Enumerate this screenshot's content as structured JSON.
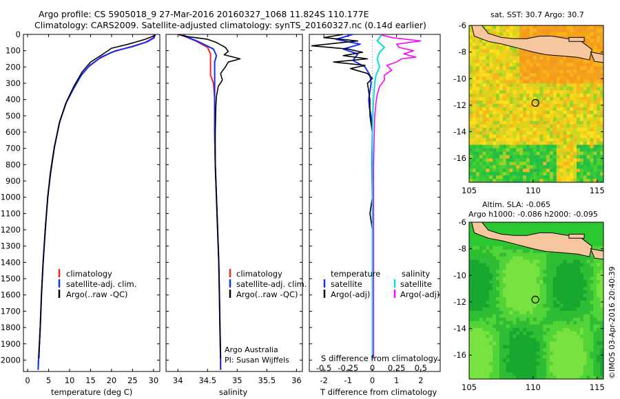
{
  "header": {
    "line1": "Argo profile: CS 5905018_9 27-Mar-2016 20160327_1068 11.824S 110.177E",
    "line2": "Climatology: CARS2009. Satellite-adjusted climatology: synTS_20160327.nc (0.14d earlier)"
  },
  "colors": {
    "climatology": "#ff2020",
    "satellite": "#1030ff",
    "argo": "#000000",
    "satellite_salinity": "#00e0e0",
    "argo_salinity": "#ff00ff",
    "land": "#f6c79e"
  },
  "chart_data": [
    {
      "type": "line",
      "id": "temperature",
      "xlabel": "temperature (deg C)",
      "xlim": [
        -1,
        31.5
      ],
      "xticks": [
        0,
        5,
        10,
        15,
        20,
        25,
        30
      ],
      "ylim": [
        2070,
        0
      ],
      "yticks": [
        0,
        100,
        200,
        300,
        400,
        500,
        600,
        700,
        800,
        900,
        1000,
        1100,
        1200,
        1300,
        1400,
        1500,
        1600,
        1700,
        1800,
        1900,
        2000
      ],
      "legend": [
        "climatology",
        "satellite-adj. clim.",
        "Argo(..raw -QC)"
      ],
      "series": [
        {
          "name": "climatology",
          "color": "#ff2020",
          "points": [
            [
              30.2,
              0
            ],
            [
              30,
              20
            ],
            [
              28,
              50
            ],
            [
              24,
              80
            ],
            [
              20,
              110
            ],
            [
              17,
              150
            ],
            [
              14.5,
              200
            ],
            [
              12.5,
              260
            ],
            [
              10.5,
              350
            ],
            [
              9,
              430
            ],
            [
              7.5,
              550
            ],
            [
              6.3,
              700
            ],
            [
              5.4,
              850
            ],
            [
              4.8,
              1000
            ],
            [
              4.2,
              1200
            ],
            [
              3.7,
              1400
            ],
            [
              3.3,
              1600
            ],
            [
              3,
              1800
            ],
            [
              2.6,
              2000
            ],
            [
              2.5,
              2060
            ]
          ]
        },
        {
          "name": "satellite-adj. clim.",
          "color": "#1030ff",
          "points": [
            [
              30.2,
              0
            ],
            [
              30.2,
              20
            ],
            [
              28.5,
              45
            ],
            [
              25,
              75
            ],
            [
              21,
              100
            ],
            [
              17.5,
              140
            ],
            [
              14.8,
              190
            ],
            [
              12.8,
              250
            ],
            [
              10.8,
              340
            ],
            [
              9.2,
              420
            ],
            [
              7.6,
              540
            ],
            [
              6.4,
              690
            ],
            [
              5.5,
              840
            ],
            [
              4.8,
              1000
            ],
            [
              4.2,
              1200
            ],
            [
              3.7,
              1400
            ],
            [
              3.3,
              1600
            ],
            [
              3,
              1800
            ],
            [
              2.6,
              2000
            ],
            [
              2.5,
              2060
            ]
          ]
        },
        {
          "name": "Argo(..raw -QC)",
          "color": "#000000",
          "points": [
            [
              30.5,
              5
            ],
            [
              28,
              30
            ],
            [
              24,
              60
            ],
            [
              20,
              85
            ],
            [
              18,
              120
            ],
            [
              15,
              170
            ],
            [
              13,
              230
            ],
            [
              11,
              320
            ],
            [
              9.3,
              410
            ],
            [
              7.7,
              530
            ],
            [
              6.4,
              690
            ],
            [
              5.5,
              850
            ],
            [
              4.8,
              1000
            ],
            [
              4.2,
              1200
            ],
            [
              3.7,
              1400
            ],
            [
              3.3,
              1600
            ],
            [
              3,
              1800
            ],
            [
              2.7,
              1990
            ]
          ]
        }
      ]
    },
    {
      "type": "line",
      "id": "salinity",
      "xlabel": "salinity",
      "xlim": [
        33.8,
        36.1
      ],
      "xticks": [
        34,
        34.5,
        35,
        35.5,
        36
      ],
      "ylim": [
        2070,
        0
      ],
      "legend": [
        "climatology",
        "satellite-adj. clim.",
        "Argo(..raw -QC)"
      ],
      "annotations": [
        "Argo Australia",
        "PI: Susan Wijffels"
      ],
      "series": [
        {
          "name": "climatology",
          "color": "#ff2020",
          "points": [
            [
              34.05,
              0
            ],
            [
              34.1,
              10
            ],
            [
              34.3,
              40
            ],
            [
              34.5,
              80
            ],
            [
              34.55,
              120
            ],
            [
              34.55,
              180
            ],
            [
              34.55,
              250
            ],
            [
              34.6,
              300
            ],
            [
              34.62,
              400
            ],
            [
              34.62,
              600
            ],
            [
              34.63,
              800
            ],
            [
              34.65,
              1000
            ],
            [
              34.67,
              1200
            ],
            [
              34.69,
              1400
            ],
            [
              34.7,
              1600
            ],
            [
              34.71,
              1800
            ],
            [
              34.72,
              2000
            ],
            [
              34.72,
              2060
            ]
          ]
        },
        {
          "name": "satellite-adj. clim.",
          "color": "#1030ff",
          "points": [
            [
              34.08,
              0
            ],
            [
              34.15,
              15
            ],
            [
              34.35,
              45
            ],
            [
              34.6,
              90
            ],
            [
              34.65,
              130
            ],
            [
              34.62,
              170
            ],
            [
              34.62,
              250
            ],
            [
              34.62,
              300
            ],
            [
              34.62,
              400
            ],
            [
              34.62,
              600
            ],
            [
              34.63,
              800
            ],
            [
              34.65,
              1000
            ],
            [
              34.67,
              1200
            ],
            [
              34.69,
              1400
            ],
            [
              34.7,
              1600
            ],
            [
              34.71,
              1800
            ],
            [
              34.72,
              2000
            ],
            [
              34.72,
              2060
            ]
          ]
        },
        {
          "name": "Argo(..raw -QC)",
          "color": "#000000",
          "points": [
            [
              34.0,
              0
            ],
            [
              34.1,
              10
            ],
            [
              34.5,
              30
            ],
            [
              34.65,
              50
            ],
            [
              34.8,
              80
            ],
            [
              34.85,
              105
            ],
            [
              34.78,
              125
            ],
            [
              35.05,
              150
            ],
            [
              34.85,
              170
            ],
            [
              34.8,
              200
            ],
            [
              34.72,
              240
            ],
            [
              34.75,
              280
            ],
            [
              34.68,
              320
            ],
            [
              34.65,
              380
            ],
            [
              34.64,
              450
            ],
            [
              34.63,
              600
            ],
            [
              34.63,
              800
            ],
            [
              34.65,
              1000
            ],
            [
              34.67,
              1200
            ],
            [
              34.69,
              1400
            ],
            [
              34.7,
              1600
            ],
            [
              34.71,
              1800
            ],
            [
              34.72,
              1990
            ]
          ]
        }
      ]
    },
    {
      "type": "line",
      "id": "difference",
      "xlabel": "T difference from climatology",
      "xlabel_top": "S difference from climatology",
      "xlim": [
        -2.6,
        2.8
      ],
      "xticks": [
        -2,
        -1,
        0,
        1,
        2
      ],
      "s_ticks": [
        "-0.5",
        "-0.25",
        "0",
        "0.25",
        "0.5"
      ],
      "ylim": [
        2070,
        0
      ],
      "legend_left_title": "temperature",
      "legend_right_title": "salinity",
      "legend_left": [
        "satellite",
        "Argo(-adj)"
      ],
      "legend_right": [
        "satellite",
        "Argo(-adj)"
      ],
      "series": [
        {
          "name": "temperature satellite",
          "color": "#1030ff",
          "points": [
            [
              -0.8,
              0
            ],
            [
              -1.5,
              30
            ],
            [
              -0.5,
              60
            ],
            [
              -1.2,
              90
            ],
            [
              -0.6,
              120
            ],
            [
              -0.8,
              160
            ],
            [
              -0.3,
              200
            ],
            [
              -0.1,
              250
            ],
            [
              -0.05,
              300
            ],
            [
              -0.1,
              350
            ],
            [
              -0.15,
              400
            ],
            [
              -0.12,
              450
            ],
            [
              -0.05,
              500
            ],
            [
              0,
              600
            ],
            [
              -0.02,
              800
            ],
            [
              0,
              1000
            ],
            [
              0,
              1200
            ],
            [
              0,
              1400
            ],
            [
              0,
              1600
            ],
            [
              0,
              1800
            ],
            [
              0,
              2000
            ]
          ]
        },
        {
          "name": "temperature Argo(-adj)",
          "color": "#000000",
          "points": [
            [
              -1.2,
              0
            ],
            [
              -2.0,
              20
            ],
            [
              -0.6,
              40
            ],
            [
              -2.5,
              70
            ],
            [
              -1.0,
              90
            ],
            [
              -0.4,
              110
            ],
            [
              -1.2,
              130
            ],
            [
              -0.2,
              150
            ],
            [
              -1.6,
              170
            ],
            [
              -0.3,
              190
            ],
            [
              -0.9,
              210
            ],
            [
              -0.2,
              240
            ],
            [
              0,
              270
            ],
            [
              -0.2,
              300
            ],
            [
              -0.15,
              350
            ],
            [
              -0.1,
              400
            ],
            [
              -0.1,
              500
            ],
            [
              0,
              600
            ],
            [
              0,
              800
            ],
            [
              0,
              1000
            ],
            [
              -0.1,
              1100
            ],
            [
              0,
              1200
            ],
            [
              0,
              1400
            ],
            [
              0,
              1600
            ],
            [
              0,
              1800
            ],
            [
              0,
              1990
            ]
          ]
        },
        {
          "name": "salinity satellite",
          "color": "#00e0e0",
          "points": [
            [
              0.4,
              0
            ],
            [
              0.2,
              40
            ],
            [
              0.5,
              80
            ],
            [
              0.3,
              110
            ],
            [
              0.2,
              150
            ],
            [
              0.3,
              200
            ],
            [
              0.15,
              250
            ],
            [
              0.1,
              300
            ],
            [
              0.05,
              400
            ],
            [
              0.02,
              500
            ],
            [
              0,
              600
            ],
            [
              0,
              800
            ],
            [
              0,
              1000
            ],
            [
              0,
              1200
            ],
            [
              0,
              1400
            ],
            [
              0,
              1600
            ],
            [
              0,
              1800
            ],
            [
              0,
              2000
            ]
          ]
        },
        {
          "name": "salinity Argo(-adj)",
          "color": "#ff00ff",
          "points": [
            [
              0.3,
              0
            ],
            [
              0.8,
              20
            ],
            [
              2.0,
              40
            ],
            [
              1.0,
              60
            ],
            [
              1.1,
              80
            ],
            [
              1.7,
              100
            ],
            [
              1.3,
              120
            ],
            [
              1.8,
              140
            ],
            [
              1.2,
              150
            ],
            [
              1.0,
              170
            ],
            [
              0.6,
              190
            ],
            [
              0.8,
              220
            ],
            [
              0.5,
              250
            ],
            [
              0.5,
              280
            ],
            [
              0.3,
              320
            ],
            [
              0.2,
              370
            ],
            [
              0.15,
              420
            ],
            [
              0.1,
              500
            ],
            [
              0.08,
              600
            ],
            [
              0.05,
              800
            ],
            [
              0.05,
              1000
            ],
            [
              0.05,
              1200
            ],
            [
              0.05,
              1400
            ],
            [
              0.05,
              1600
            ],
            [
              0.05,
              1800
            ],
            [
              0.05,
              1990
            ]
          ]
        }
      ]
    },
    {
      "type": "heatmap",
      "id": "sst_map",
      "title": "sat. SST: 30.7  Argo: 30.7",
      "xlim": [
        105,
        115.5
      ],
      "ylim": [
        -17.8,
        -6
      ],
      "xticks": [
        105,
        110,
        115
      ],
      "yticks": [
        -6,
        -8,
        -10,
        -12,
        -14,
        -16
      ],
      "marker": {
        "lon": 110.177,
        "lat": -11.824
      }
    },
    {
      "type": "heatmap",
      "id": "sla_map",
      "title": "Altim. SLA: -0.065",
      "subtitle": "Argo h1000: -0.086 h2000: -0.095",
      "xlim": [
        105,
        115.5
      ],
      "ylim": [
        -17.8,
        -6
      ],
      "xticks": [
        105,
        110,
        115
      ],
      "yticks": [
        -6,
        -8,
        -10,
        -12,
        -14,
        -16
      ],
      "marker": {
        "lon": 110.177,
        "lat": -11.824
      }
    }
  ],
  "footer_text": "©IMOS 03-Apr-2016 20:40:39"
}
